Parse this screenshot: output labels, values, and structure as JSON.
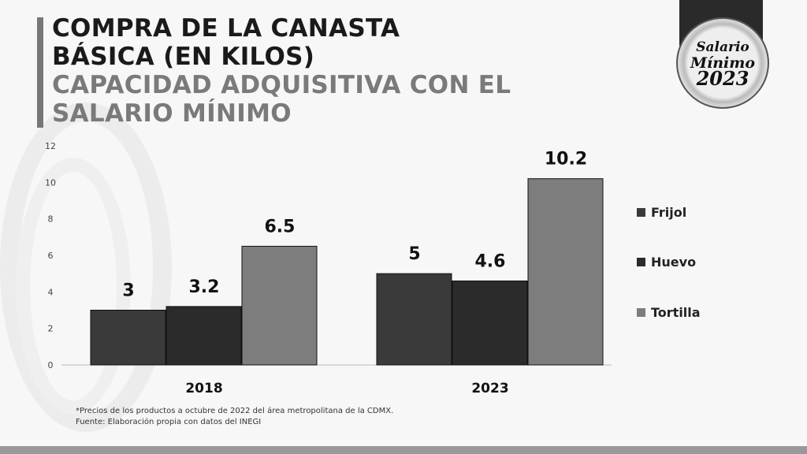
{
  "title": {
    "line1": "COMPRA DE LA CANASTA",
    "line2": "BÁSICA (EN KILOS)",
    "line3": "CAPACIDAD ADQUISITIVA CON EL",
    "line4": "SALARIO MÍNIMO"
  },
  "badge": {
    "line1": "Salario",
    "line2": "Mínimo",
    "line3": "2023"
  },
  "notes": {
    "note1": "*Precios de los productos a octubre de 2022 del área metropolitana de la CDMX.",
    "note2": "Fuente: Elaboración propia con datos del INEGI"
  },
  "chart_data": {
    "type": "bar",
    "title": "Compra de la canasta básica (en kilos)",
    "categories": [
      "2018",
      "2023"
    ],
    "series": [
      {
        "name": "Frijol",
        "values": [
          3,
          5
        ],
        "labels": [
          "3",
          "5"
        ],
        "color": "#3a3a3a"
      },
      {
        "name": "Huevo",
        "values": [
          3.2,
          4.6
        ],
        "labels": [
          "3.2",
          "4.6"
        ],
        "color": "#2b2b2b"
      },
      {
        "name": "Tortilla",
        "values": [
          6.5,
          10.2
        ],
        "labels": [
          "6.5",
          "10.2"
        ],
        "color": "#7d7d7d"
      }
    ],
    "yticks": [
      "0",
      "2",
      "4",
      "6",
      "8",
      "10",
      "12"
    ],
    "ylim": [
      0,
      12
    ],
    "legend": "right",
    "grid": false
  }
}
